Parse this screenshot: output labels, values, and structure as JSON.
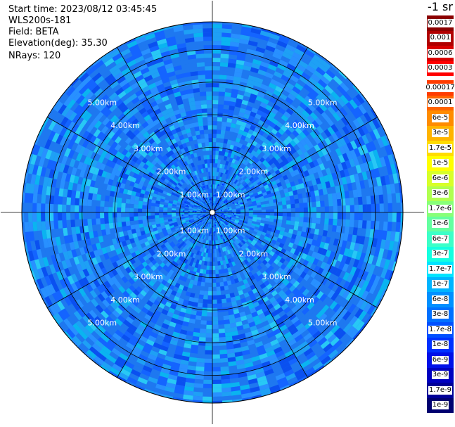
{
  "info": {
    "start_time": "Start time: 2023/08/12 03:45:45",
    "instrument": "WLS200s-181",
    "field": "Field: BETA",
    "elevation": "Elevation(deg): 35.30",
    "nrays": "NRays: 120"
  },
  "colorbar": {
    "title": "-1 sr",
    "levels": [
      "0.0017",
      "0.001",
      "0.0006",
      "0.0003",
      "0.00017",
      "0.0001",
      "6e-5",
      "3e-5",
      "1.7e-5",
      "1e-5",
      "6e-6",
      "3e-6",
      "1.7e-6",
      "1e-6",
      "6e-7",
      "3e-7",
      "1.7e-7",
      "1e-7",
      "6e-8",
      "3e-8",
      "1.7e-8",
      "1e-8",
      "6e-9",
      "3e-9",
      "1.7e-9",
      "1e-9"
    ],
    "colors": [
      "#8b0000",
      "#b00000",
      "#d80000",
      "#ff0000",
      "#ff3c00",
      "#ff6400",
      "#ff8c00",
      "#ffb400",
      "#ffdc00",
      "#ffff00",
      "#d8ff28",
      "#b0ff50",
      "#88ff78",
      "#64ffa0",
      "#3cffc8",
      "#14ffe0",
      "#00e4ff",
      "#00b4ff",
      "#0090ff",
      "#0070ff",
      "#0050ff",
      "#0030ff",
      "#0010e8",
      "#0000c0",
      "#000098",
      "#000070"
    ]
  },
  "chart_data": {
    "type": "heatmap",
    "projection": "polar (PPI)",
    "field": "BETA",
    "nrays": 120,
    "elevation_deg": 35.3,
    "range_rings_km": [
      1.0,
      2.0,
      3.0,
      4.0,
      5.0
    ],
    "radial_spokes_deg": [
      0,
      30,
      60,
      90,
      120,
      150,
      180,
      210,
      240,
      270,
      300,
      330
    ],
    "ring_labels": [
      {
        "text": "1.00km",
        "quadrant": "upper-left",
        "ring": 1
      },
      {
        "text": "1.00km",
        "quadrant": "upper-right",
        "ring": 1
      },
      {
        "text": "1.00km",
        "quadrant": "lower-left",
        "ring": 1
      },
      {
        "text": "1.00km",
        "quadrant": "lower-right",
        "ring": 1
      },
      {
        "text": "2.00km",
        "quadrant": "upper-left",
        "ring": 2
      },
      {
        "text": "2.00km",
        "quadrant": "upper-right",
        "ring": 2
      },
      {
        "text": "2.00km",
        "quadrant": "lower-left",
        "ring": 2
      },
      {
        "text": "2.00km",
        "quadrant": "lower-right",
        "ring": 2
      },
      {
        "text": "3.00km",
        "quadrant": "upper-left",
        "ring": 3
      },
      {
        "text": "3.00km",
        "quadrant": "upper-right",
        "ring": 3
      },
      {
        "text": "3.00km",
        "quadrant": "lower-left",
        "ring": 3
      },
      {
        "text": "3.00km",
        "quadrant": "lower-right",
        "ring": 3
      },
      {
        "text": "4.00km",
        "quadrant": "upper-left",
        "ring": 4
      },
      {
        "text": "4.00km",
        "quadrant": "upper-right",
        "ring": 4
      },
      {
        "text": "4.00km",
        "quadrant": "lower-left",
        "ring": 4
      },
      {
        "text": "4.00km",
        "quadrant": "lower-right",
        "ring": 4
      },
      {
        "text": "5.00km",
        "quadrant": "upper-left",
        "ring": 5
      },
      {
        "text": "5.00km",
        "quadrant": "upper-right",
        "ring": 5
      },
      {
        "text": "5.00km",
        "quadrant": "lower-left",
        "ring": 5
      },
      {
        "text": "5.00km",
        "quadrant": "lower-right",
        "ring": 5
      }
    ],
    "dominant_value_range": [
      "1.7e-8",
      "1e-7"
    ],
    "grid": true
  }
}
